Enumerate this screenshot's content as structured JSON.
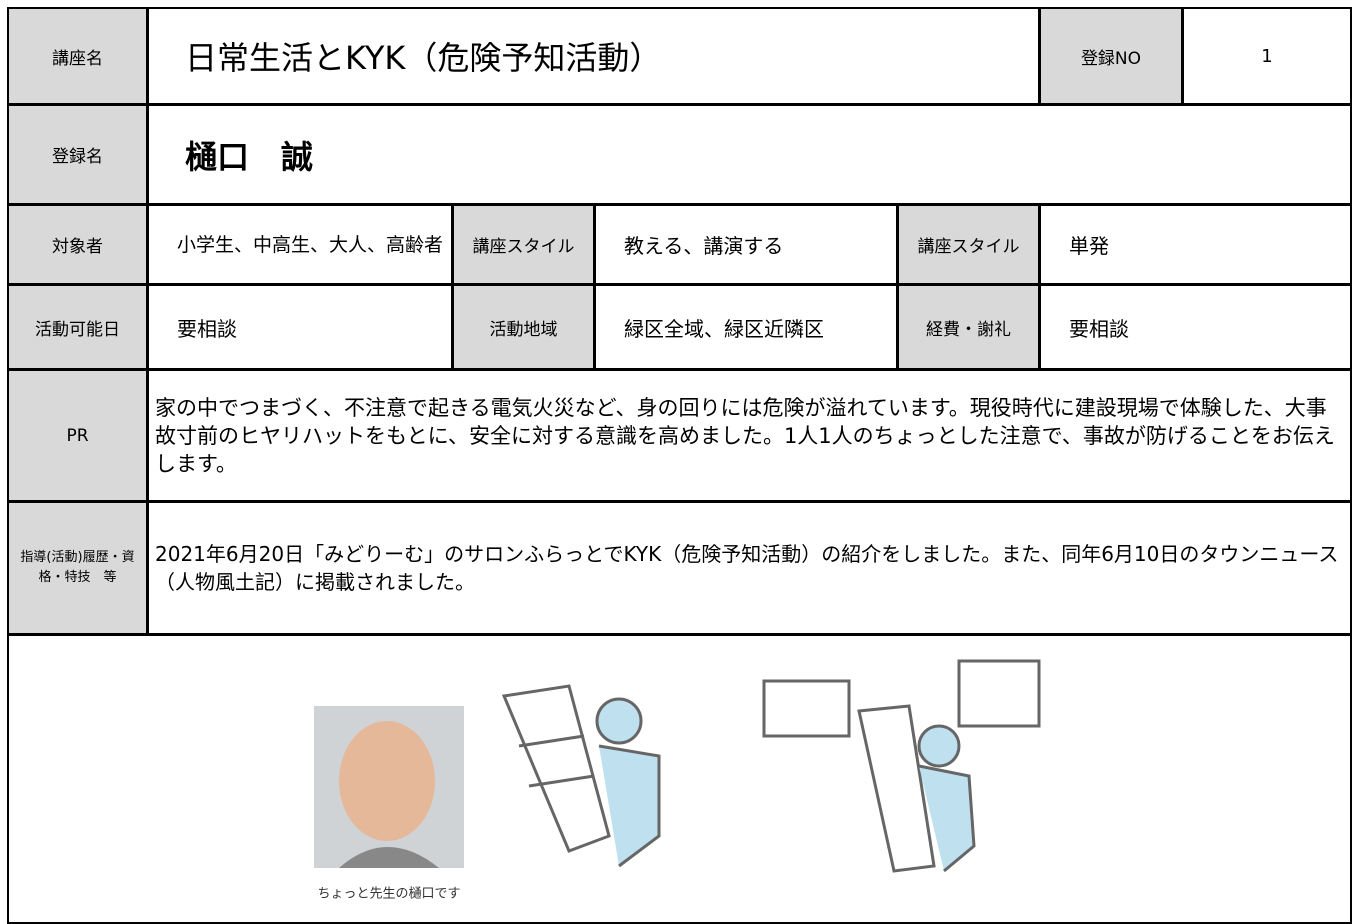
{
  "course": {
    "label": "講座名",
    "value": "日常生活とKYK（危険予知活動）"
  },
  "registration_no": {
    "label": "登録NO",
    "value": 1
  },
  "registrant": {
    "label": "登録名",
    "value": "樋口　誠"
  },
  "audience": {
    "label": "対象者",
    "value": "小学生、中高生、大人、高齢者"
  },
  "style_1": {
    "label": "講座スタイル",
    "value": "教える、講演する"
  },
  "style_2": {
    "label": "講座スタイル",
    "value": "単発"
  },
  "available_days": {
    "label": "活動可能日",
    "value": "要相談"
  },
  "area": {
    "label": "活動地域",
    "value": "緑区全域、緑区近隣区"
  },
  "fee": {
    "label": "経費・謝礼",
    "value": "要相談"
  },
  "pr": {
    "label": "PR",
    "value": "家の中でつまづく、不注意で起きる電気火災など、身の回りには危険が溢れています。現役時代に建設現場で体験した、大事故寸前のヒヤリハットをもとに、安全に対する意識を高めました。1人1人のちょっとした注意で、事故が防げることをお伝えします。"
  },
  "history": {
    "label": "指導(活動)履歴・資格・特技　等",
    "value": "2021年6月20日「みどりーむ」のサロンふらっとでKYK（危険予知活動）の紹介をしました。また、同年6月10日のタウンニュース（人物風土記）に掲載されました。"
  },
  "photo_caption": "ちょっと先生の樋口です"
}
